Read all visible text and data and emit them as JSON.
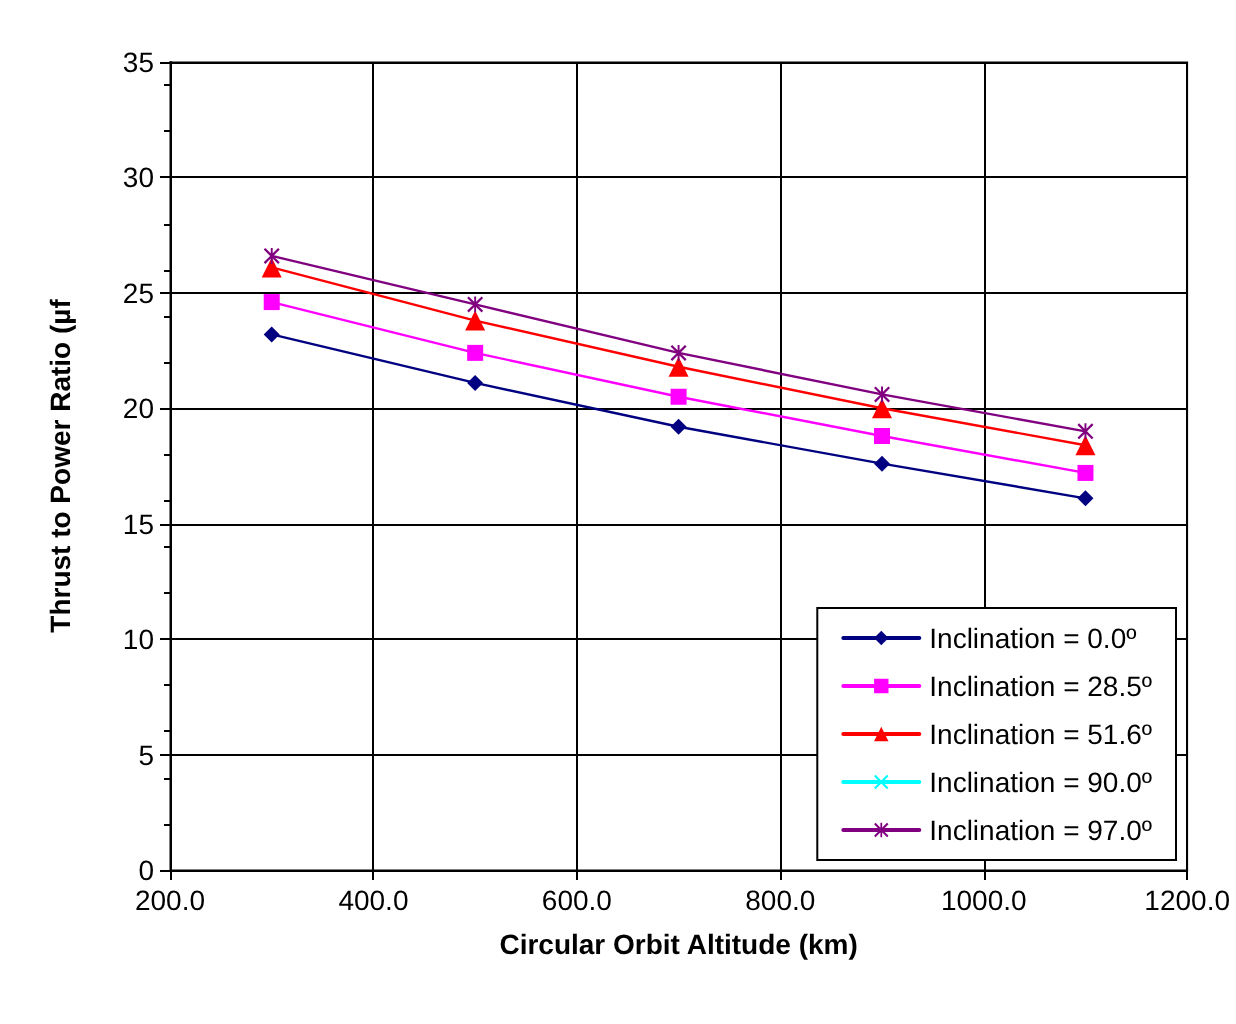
{
  "chart_data": {
    "type": "line",
    "xlabel": "Circular Orbit Altitude (km)",
    "ylabel": "Thrust to Power Ratio (µf",
    "x": [
      300,
      500,
      700,
      900,
      1100
    ],
    "xlim": [
      200,
      1200
    ],
    "xticks": [
      {
        "value": 200,
        "label": "200.0"
      },
      {
        "value": 400,
        "label": "400.0"
      },
      {
        "value": 600,
        "label": "600.0"
      },
      {
        "value": 800,
        "label": "800.0"
      },
      {
        "value": 1000,
        "label": "1000.0"
      },
      {
        "value": 1200,
        "label": "1200.0"
      }
    ],
    "ylim": [
      0,
      35
    ],
    "yticks": [
      0,
      5,
      10,
      15,
      20,
      25,
      30,
      35
    ],
    "grid": true,
    "legend": "bottom right",
    "series": [
      {
        "name": "Inclination = 0.0º",
        "color": "#000080",
        "marker": "diamond",
        "values": [
          23.2,
          21.1,
          19.2,
          17.6,
          16.1
        ]
      },
      {
        "name": "Inclination = 28.5º",
        "color": "#ff00ff",
        "marker": "square",
        "values": [
          24.6,
          22.4,
          20.5,
          18.8,
          17.2
        ]
      },
      {
        "name": "Inclination = 51.6º",
        "color": "#ff0000",
        "marker": "triangle",
        "values": [
          26.1,
          23.8,
          21.8,
          20.0,
          18.4
        ]
      },
      {
        "name": "Inclination = 90.0º",
        "color": "#00ffff",
        "marker": "cross",
        "values": [
          null,
          null,
          null,
          null,
          null
        ]
      },
      {
        "name": "Inclination = 97.0º",
        "color": "#800080",
        "marker": "star",
        "values": [
          26.6,
          24.5,
          22.4,
          20.6,
          19.0
        ]
      }
    ]
  }
}
